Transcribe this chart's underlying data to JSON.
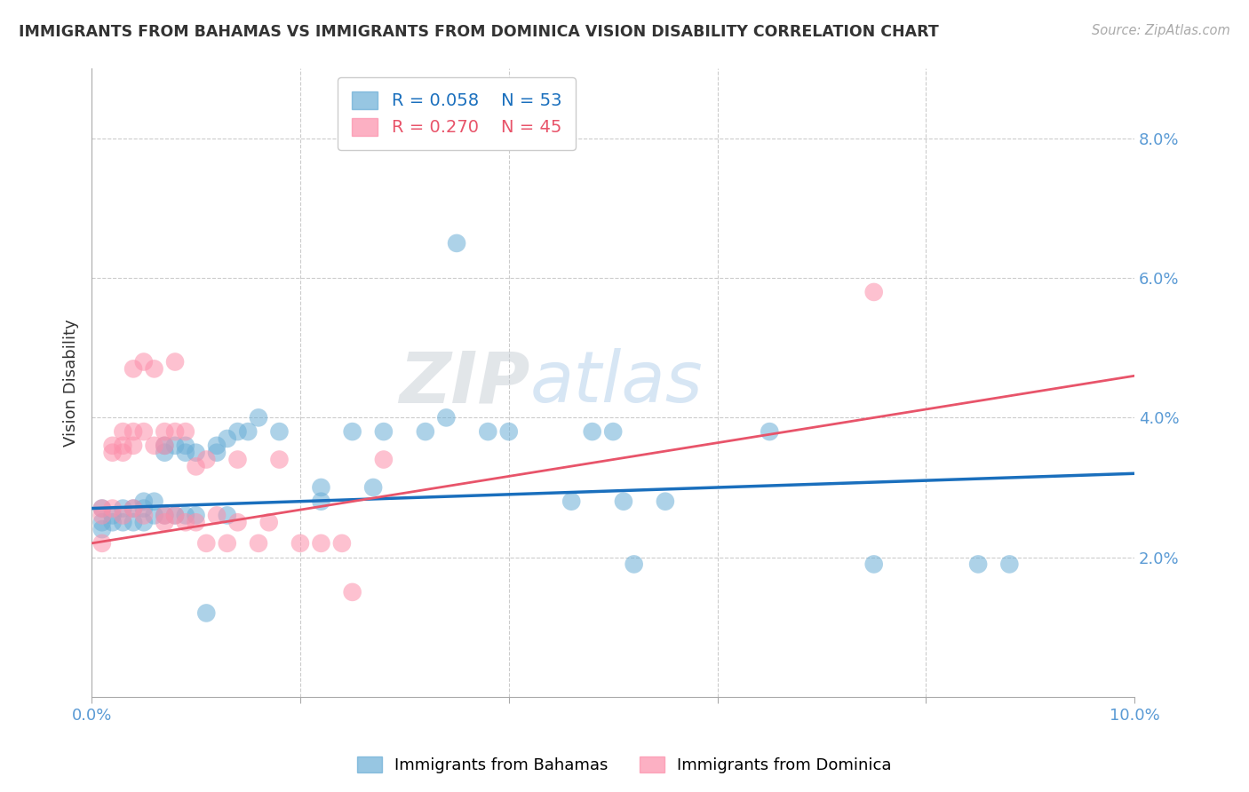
{
  "title": "IMMIGRANTS FROM BAHAMAS VS IMMIGRANTS FROM DOMINICA VISION DISABILITY CORRELATION CHART",
  "source": "Source: ZipAtlas.com",
  "ylabel": "Vision Disability",
  "x_min": 0.0,
  "x_max": 0.1,
  "y_min": 0.0,
  "y_max": 0.09,
  "y_ticks": [
    0.02,
    0.04,
    0.06,
    0.08
  ],
  "y_tick_labels": [
    "2.0%",
    "4.0%",
    "6.0%",
    "8.0%"
  ],
  "x_ticks": [
    0.0,
    0.02,
    0.04,
    0.06,
    0.08,
    0.1
  ],
  "x_tick_labels": [
    "0.0%",
    "",
    "",
    "",
    "",
    "10.0%"
  ],
  "bahamas_R": 0.058,
  "bahamas_N": 53,
  "dominica_R": 0.27,
  "dominica_N": 45,
  "bahamas_color": "#6baed6",
  "dominica_color": "#fc8faa",
  "trend_bahamas_color": "#1a6fbd",
  "trend_dominica_color": "#e8546a",
  "background_color": "#ffffff",
  "grid_color": "#cccccc",
  "title_color": "#333333",
  "axis_label_color": "#5b9bd5",
  "watermark": "ZIPatlas",
  "bahamas_x": [
    0.001,
    0.001,
    0.001,
    0.002,
    0.002,
    0.003,
    0.003,
    0.004,
    0.004,
    0.005,
    0.005,
    0.005,
    0.006,
    0.006,
    0.007,
    0.007,
    0.007,
    0.008,
    0.008,
    0.009,
    0.009,
    0.009,
    0.01,
    0.01,
    0.011,
    0.012,
    0.012,
    0.013,
    0.013,
    0.014,
    0.015,
    0.016,
    0.018,
    0.022,
    0.022,
    0.025,
    0.027,
    0.028,
    0.032,
    0.034,
    0.035,
    0.038,
    0.04,
    0.046,
    0.048,
    0.05,
    0.051,
    0.052,
    0.055,
    0.065,
    0.075,
    0.085,
    0.088
  ],
  "bahamas_y": [
    0.027,
    0.025,
    0.024,
    0.026,
    0.025,
    0.027,
    0.025,
    0.027,
    0.025,
    0.028,
    0.027,
    0.025,
    0.028,
    0.026,
    0.036,
    0.035,
    0.026,
    0.036,
    0.026,
    0.036,
    0.035,
    0.026,
    0.035,
    0.026,
    0.012,
    0.036,
    0.035,
    0.037,
    0.026,
    0.038,
    0.038,
    0.04,
    0.038,
    0.03,
    0.028,
    0.038,
    0.03,
    0.038,
    0.038,
    0.04,
    0.065,
    0.038,
    0.038,
    0.028,
    0.038,
    0.038,
    0.028,
    0.019,
    0.028,
    0.038,
    0.019,
    0.019,
    0.019
  ],
  "dominica_x": [
    0.001,
    0.001,
    0.001,
    0.002,
    0.002,
    0.002,
    0.003,
    0.003,
    0.003,
    0.003,
    0.004,
    0.004,
    0.004,
    0.004,
    0.005,
    0.005,
    0.005,
    0.006,
    0.006,
    0.007,
    0.007,
    0.007,
    0.007,
    0.008,
    0.008,
    0.008,
    0.009,
    0.009,
    0.01,
    0.01,
    0.011,
    0.011,
    0.012,
    0.013,
    0.014,
    0.014,
    0.016,
    0.017,
    0.018,
    0.02,
    0.022,
    0.024,
    0.025,
    0.028,
    0.075
  ],
  "dominica_y": [
    0.027,
    0.026,
    0.022,
    0.036,
    0.035,
    0.027,
    0.038,
    0.036,
    0.035,
    0.026,
    0.047,
    0.038,
    0.036,
    0.027,
    0.048,
    0.038,
    0.026,
    0.047,
    0.036,
    0.038,
    0.036,
    0.026,
    0.025,
    0.048,
    0.038,
    0.026,
    0.038,
    0.025,
    0.033,
    0.025,
    0.034,
    0.022,
    0.026,
    0.022,
    0.034,
    0.025,
    0.022,
    0.025,
    0.034,
    0.022,
    0.022,
    0.022,
    0.015,
    0.034,
    0.058
  ],
  "trend_bahamas_x0": 0.0,
  "trend_bahamas_x1": 0.1,
  "trend_bahamas_y0": 0.027,
  "trend_bahamas_y1": 0.032,
  "trend_dominica_x0": 0.0,
  "trend_dominica_x1": 0.1,
  "trend_dominica_y0": 0.022,
  "trend_dominica_y1": 0.046
}
